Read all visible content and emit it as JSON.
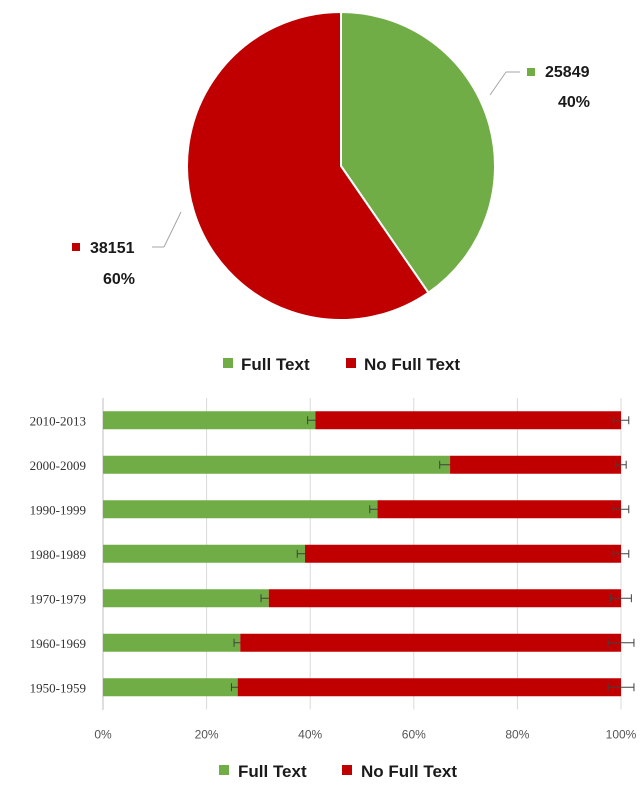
{
  "colors": {
    "full_text": "#70ad47",
    "no_full_text": "#c00000",
    "grid": "#d9d9d9",
    "leader": "#a6a6a6",
    "error_bar": "#404040"
  },
  "chart_data": [
    {
      "type": "pie",
      "title": "",
      "slices": [
        {
          "name": "Full Text",
          "value": 25849,
          "percent_label": "40%",
          "color": "#70ad47"
        },
        {
          "name": "No Full Text",
          "value": 38151,
          "percent_label": "60%",
          "color": "#c00000"
        }
      ],
      "legend": {
        "placement": "bottom",
        "entries": [
          "Full Text",
          "No Full Text"
        ]
      }
    },
    {
      "type": "bar",
      "orientation": "horizontal",
      "stacked": "percent",
      "title": "",
      "xlabel": "",
      "ylabel": "",
      "categories": [
        "2010-2013",
        "2000-2009",
        "1990-1999",
        "1980-1989",
        "1970-1979",
        "1960-1969",
        "1950-1959"
      ],
      "series": [
        {
          "name": "Full Text",
          "color": "#70ad47",
          "values": [
            41,
            67,
            53,
            39,
            32,
            26.5,
            26
          ],
          "error": [
            1.5,
            2,
            1.5,
            1.5,
            1.5,
            1.2,
            1.2
          ]
        },
        {
          "name": "No Full Text",
          "color": "#c00000",
          "values": [
            59,
            33,
            47,
            61,
            68,
            73.5,
            74
          ],
          "error": [
            1.5,
            1,
            1.5,
            1.5,
            2,
            2.5,
            2.5
          ]
        }
      ],
      "xlim": [
        0,
        100
      ],
      "x_ticks": [
        "0%",
        "20%",
        "40%",
        "60%",
        "80%",
        "100%"
      ],
      "grid": true,
      "legend": {
        "placement": "bottom",
        "entries": [
          "Full Text",
          "No Full Text"
        ]
      }
    }
  ]
}
